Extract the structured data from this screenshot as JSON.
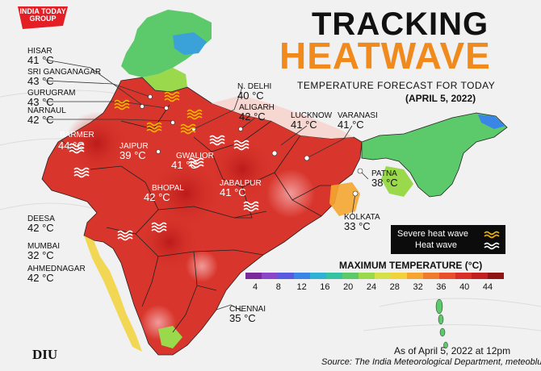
{
  "brand": {
    "logo_text": "INDIA TODAY GROUP",
    "footer_logo": "DIU",
    "logo_color": "#e31e24"
  },
  "header": {
    "title_line1": "TRACKING",
    "title_line2": "HEATWAVE",
    "subtitle": "TEMPERATURE FORECAST FOR TODAY",
    "date": "(APRIL 5, 2022)"
  },
  "cities": [
    {
      "name": "HISAR",
      "temp": "41"
    },
    {
      "name": "SRI GANGANAGAR",
      "temp": "43"
    },
    {
      "name": "GURUGRAM",
      "temp": "43"
    },
    {
      "name": "NARNAUL",
      "temp": "42"
    },
    {
      "name": "BARMER",
      "temp": "44"
    },
    {
      "name": "JAIPUR",
      "temp": "39"
    },
    {
      "name": "DEESA",
      "temp": "42"
    },
    {
      "name": "MUMBAI",
      "temp": "32"
    },
    {
      "name": "AHMEDNAGAR",
      "temp": "42"
    },
    {
      "name": "N. DELHI",
      "temp": "40"
    },
    {
      "name": "ALIGARH",
      "temp": "42"
    },
    {
      "name": "LUCKNOW",
      "temp": "41"
    },
    {
      "name": "VARANASI",
      "temp": "41"
    },
    {
      "name": "GWALIOR",
      "temp": "41"
    },
    {
      "name": "BHOPAL",
      "temp": "42"
    },
    {
      "name": "JABALPUR",
      "temp": "41"
    },
    {
      "name": "PATNA",
      "temp": "38"
    },
    {
      "name": "KOLKATA",
      "temp": "33"
    },
    {
      "name": "CHENNAI",
      "temp": "35"
    }
  ],
  "temp_unit": "°C",
  "legend": {
    "severe_label": "Severe heat wave",
    "heat_label": "Heat wave",
    "severe_color": "#f0b400",
    "heat_color": "#ffffff"
  },
  "scale": {
    "title": "MAXIMUM TEMPERATURE (°C)",
    "ticks": [
      "4",
      "8",
      "12",
      "16",
      "20",
      "24",
      "28",
      "32",
      "36",
      "40",
      "44"
    ],
    "colors": [
      "#7b2a9c",
      "#8a45c8",
      "#5a5ae0",
      "#3a86e6",
      "#2fb2d6",
      "#37c3a2",
      "#5cc96b",
      "#9ad84c",
      "#d6e04a",
      "#f2d23a",
      "#f5a630",
      "#f07b2d",
      "#e8502c",
      "#d82f28",
      "#c21f20",
      "#8f1414"
    ]
  },
  "footer": {
    "as_of": "As of April 5, 2022 at 12pm",
    "source": "Source: The India Meteorological Department, meteoblue"
  }
}
